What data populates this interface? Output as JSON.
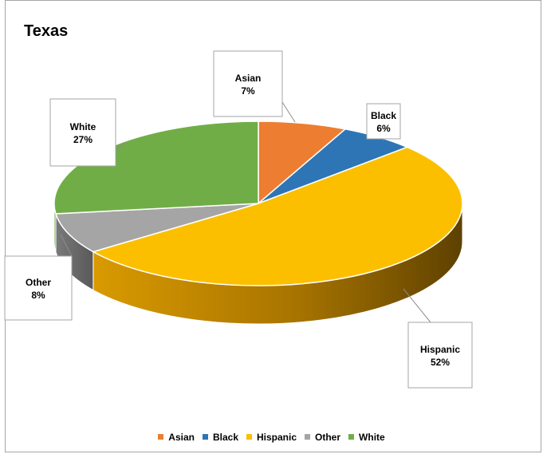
{
  "chart_data": {
    "type": "pie",
    "title": "Texas",
    "categories": [
      "Asian",
      "Black",
      "Hispanic",
      "Other",
      "White"
    ],
    "values": [
      7,
      6,
      52,
      8,
      27
    ],
    "data_labels": [
      "7%",
      "6%",
      "52%",
      "8%",
      "27%"
    ],
    "colors": [
      "#ed7d31",
      "#2e75b6",
      "#fbbf00",
      "#a5a5a5",
      "#70ad47"
    ],
    "legend_position": "bottom",
    "style": "3d-pie"
  }
}
